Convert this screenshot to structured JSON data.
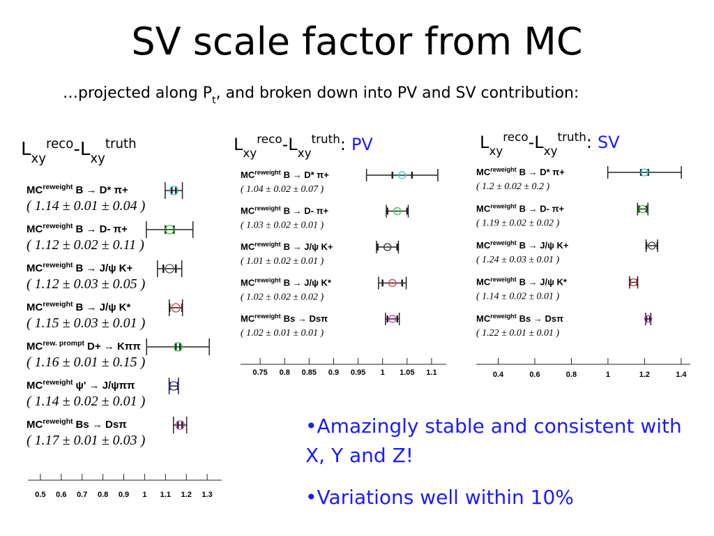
{
  "title": "SV scale factor from MC",
  "subtitle": [
    "…projected along P",
    "t",
    ", and broken down into PV and SV contribution:"
  ],
  "bullets": [
    "•Amazingly stable and consistent with X, Y and Z!",
    "•Variations well within 10%"
  ],
  "chart_data": [
    {
      "type": "errorbar",
      "title_parts": [
        "L",
        "xy",
        "reco",
        "-L",
        "xy",
        "truth"
      ],
      "prefix": "MC",
      "tags": [
        "reweight",
        "reweight",
        "reweight",
        "reweight",
        "rew. prompt",
        "reweight",
        "reweight"
      ],
      "categories": [
        "B → D* π+",
        "B → D- π+",
        "B → J/ψ K+",
        "B → J/ψ K*",
        "D+ → Kππ",
        "ψ' → J/ψππ",
        "Bs → Dsπ"
      ],
      "values": [
        1.14,
        1.12,
        1.12,
        1.15,
        1.16,
        1.14,
        1.17
      ],
      "stat": [
        0.01,
        0.02,
        0.03,
        0.03,
        0.01,
        0.02,
        0.01
      ],
      "syst": [
        0.04,
        0.11,
        0.05,
        0.01,
        0.15,
        0.01,
        0.03
      ],
      "value_labels": [
        "( 1.14  ± 0.01 ± 0.04 )",
        "( 1.12  ± 0.02  ± 0.11 )",
        "( 1.12  ± 0.03  ± 0.05 )",
        "( 1.15  ± 0.03  ± 0.01 )",
        "( 1.16  ± 0.01  ± 0.15 )",
        "( 1.14  ± 0.02  ± 0.01 )",
        "( 1.17  ± 0.01  ± 0.03 )"
      ],
      "colors": [
        "#33cccc",
        "#33cc33",
        "#555555",
        "#dd3333",
        "#33cc33",
        "#3333cc",
        "#cc33cc"
      ],
      "xlim": [
        0.44,
        1.37
      ],
      "xticks": [
        0.5,
        0.6,
        0.7,
        0.8,
        0.9,
        1,
        1.1,
        1.2,
        1.3
      ]
    },
    {
      "type": "errorbar",
      "title_parts": [
        "L",
        "xy",
        "reco",
        "-L",
        "xy",
        "truth",
        ":",
        "PV"
      ],
      "title_accent_color": "#1a1aff",
      "prefix": "MC",
      "tags": [
        "reweight",
        "reweight",
        "reweight",
        "reweight",
        "reweight"
      ],
      "categories": [
        "B → D* π+",
        "B → D- π+",
        "B → J/ψ K+",
        "B → J/ψ K*",
        "Bs → Dsπ"
      ],
      "values": [
        1.04,
        1.03,
        1.01,
        1.02,
        1.02
      ],
      "stat": [
        0.02,
        0.02,
        0.02,
        0.02,
        0.01
      ],
      "syst": [
        0.07,
        0.01,
        0.01,
        0.02,
        0.01
      ],
      "value_labels": [
        "( 1.04  ± 0.02 ± 0.07 )",
        "( 1.03  ± 0.02  ± 0.01 )",
        "( 1.01  ± 0.02  ± 0.01 )",
        "( 1.02  ± 0.02  ± 0.02 )",
        "( 1.02  ± 0.01  ± 0.01 )"
      ],
      "colors": [
        "#33cccc",
        "#33cc33",
        "#333333",
        "#dd3333",
        "#cc33cc"
      ],
      "xlim": [
        0.71,
        1.13
      ],
      "xticks": [
        0.75,
        0.8,
        0.85,
        0.9,
        0.95,
        1,
        1.05,
        1.1
      ]
    },
    {
      "type": "errorbar",
      "title_parts": [
        "L",
        "xy",
        "reco",
        "-L",
        "xy",
        "truth",
        ":",
        "SV"
      ],
      "title_accent_color": "#1a1aff",
      "prefix": "MC",
      "tags": [
        "reweight",
        "reweight",
        "reweight",
        "reweight",
        "reweight"
      ],
      "categories": [
        "B → D* π+",
        "B → D- π+",
        "B → J/ψ K+",
        "B → J/ψ K*",
        "Bs → Dsπ"
      ],
      "values": [
        1.2,
        1.19,
        1.24,
        1.14,
        1.22
      ],
      "stat": [
        0.02,
        0.02,
        0.03,
        0.02,
        0.01
      ],
      "syst": [
        0.2,
        0.02,
        0.01,
        0.01,
        0.01
      ],
      "value_labels": [
        "( 1.2  ± 0.02  ± 0.2 )",
        "( 1.19  ± 0.02  ± 0.02 )",
        "( 1.24  ± 0.03  ± 0.01 )",
        "( 1.14  ± 0.02  ± 0.01 )",
        "( 1.22  ± 0.01  ± 0.01 )"
      ],
      "colors": [
        "#33cccc",
        "#33cc33",
        "#333333",
        "#dd3333",
        "#cc33cc"
      ],
      "xlim": [
        0.28,
        1.45
      ],
      "xticks": [
        0.4,
        0.6,
        0.8,
        1,
        1.2,
        1.4
      ]
    }
  ]
}
